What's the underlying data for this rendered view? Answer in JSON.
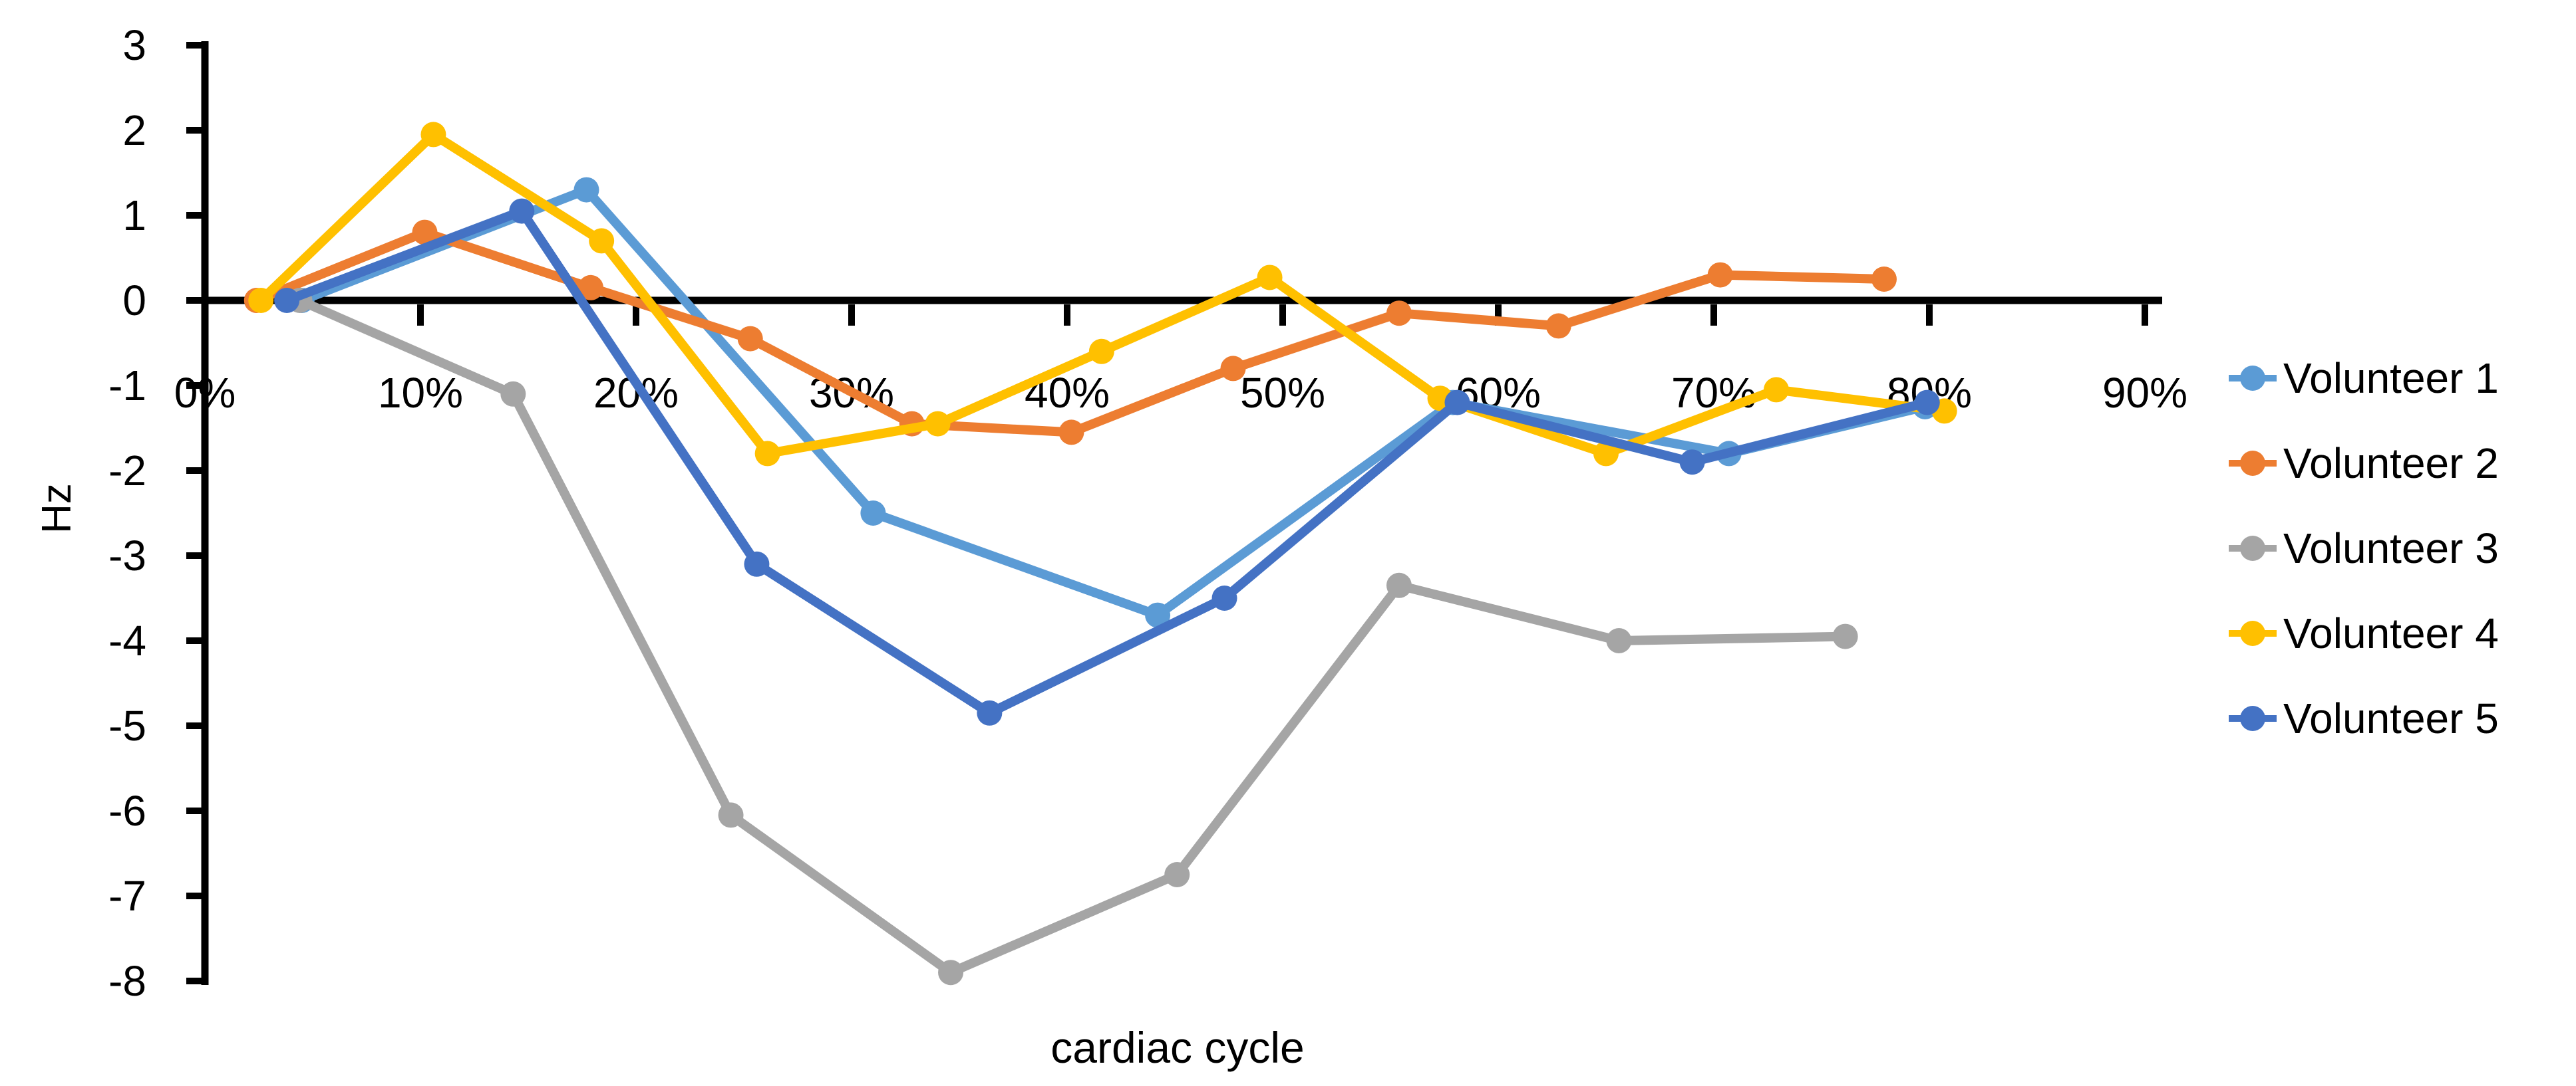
{
  "chart_data": {
    "type": "line",
    "title": "",
    "xlabel": "cardiac cycle",
    "ylabel": "Hz",
    "xlim_percent": [
      0,
      90
    ],
    "ylim": [
      -8,
      3
    ],
    "grid": false,
    "legend_position": "right",
    "background_color": "#FFFFFF",
    "axis_color": "#000000",
    "x_ticks": [
      {
        "value": 0,
        "label": "0%"
      },
      {
        "value": 10,
        "label": "10%"
      },
      {
        "value": 20,
        "label": "20%"
      },
      {
        "value": 30,
        "label": "30%"
      },
      {
        "value": 40,
        "label": "40%"
      },
      {
        "value": 50,
        "label": "50%"
      },
      {
        "value": 60,
        "label": "60%"
      },
      {
        "value": 70,
        "label": "70%"
      },
      {
        "value": 80,
        "label": "80%"
      },
      {
        "value": 90,
        "label": "90%"
      }
    ],
    "y_ticks": [
      {
        "value": 3,
        "label": "3"
      },
      {
        "value": 2,
        "label": "2"
      },
      {
        "value": 1,
        "label": "1"
      },
      {
        "value": 0,
        "label": "0"
      },
      {
        "value": -1,
        "label": "-1"
      },
      {
        "value": -2,
        "label": "-2"
      },
      {
        "value": -3,
        "label": "-3"
      },
      {
        "value": -4,
        "label": "-4"
      },
      {
        "value": -5,
        "label": "-5"
      },
      {
        "value": -6,
        "label": "-6"
      },
      {
        "value": -7,
        "label": "-7"
      },
      {
        "value": -8,
        "label": "-8"
      }
    ],
    "series": [
      {
        "name": "Volunteer 1",
        "color": "#5B9BD5",
        "points": [
          [
            4.5,
            0
          ],
          [
            17.7,
            1.3
          ],
          [
            31.0,
            -2.5
          ],
          [
            44.2,
            -3.7
          ],
          [
            57.9,
            -1.2
          ],
          [
            70.7,
            -1.8
          ],
          [
            79.8,
            -1.25
          ]
        ]
      },
      {
        "name": "Volunteer 2",
        "color": "#ED7D31",
        "points": [
          [
            2.4,
            0
          ],
          [
            10.2,
            0.8
          ],
          [
            17.9,
            0.15
          ],
          [
            25.3,
            -0.45
          ],
          [
            32.8,
            -1.45
          ],
          [
            40.2,
            -1.55
          ],
          [
            47.7,
            -0.8
          ],
          [
            55.4,
            -0.15
          ],
          [
            62.8,
            -0.3
          ],
          [
            70.3,
            0.3
          ],
          [
            77.9,
            0.25
          ]
        ]
      },
      {
        "name": "Volunteer 3",
        "color": "#A5A5A5",
        "points": [
          [
            4.4,
            0
          ],
          [
            14.3,
            -1.1
          ],
          [
            24.4,
            -6.05
          ],
          [
            34.6,
            -7.9
          ],
          [
            45.1,
            -6.75
          ],
          [
            55.4,
            -3.35
          ],
          [
            65.6,
            -4.0
          ],
          [
            76.1,
            -3.95
          ]
        ]
      },
      {
        "name": "Volunteer 4",
        "color": "#FFC000",
        "points": [
          [
            2.6,
            0
          ],
          [
            10.6,
            1.95
          ],
          [
            18.4,
            0.7
          ],
          [
            26.1,
            -1.8
          ],
          [
            34.0,
            -1.45
          ],
          [
            41.6,
            -0.6
          ],
          [
            49.4,
            0.27
          ],
          [
            57.3,
            -1.15
          ],
          [
            65.0,
            -1.8
          ],
          [
            72.9,
            -1.05
          ],
          [
            80.7,
            -1.3
          ]
        ]
      },
      {
        "name": "Volunteer 5",
        "color": "#4472C4",
        "points": [
          [
            3.8,
            0
          ],
          [
            14.7,
            1.05
          ],
          [
            25.6,
            -3.1
          ],
          [
            36.4,
            -4.85
          ],
          [
            47.3,
            -3.5
          ],
          [
            58.1,
            -1.2
          ],
          [
            69.0,
            -1.9
          ],
          [
            79.9,
            -1.2
          ]
        ]
      }
    ]
  }
}
